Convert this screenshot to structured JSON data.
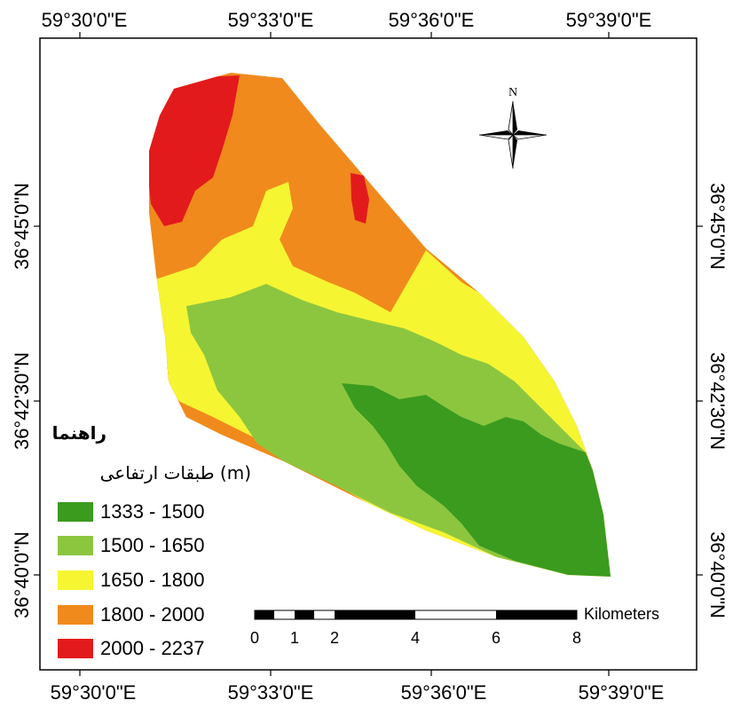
{
  "map": {
    "colors": {
      "class1": "#3a9b1f",
      "class2": "#8cc63f",
      "class3": "#f5f532",
      "class4": "#f08a1c",
      "class5": "#e31a1c"
    },
    "graticule": {
      "top_labels": [
        "59°30'0\"E",
        "59°33'0\"E",
        "59°36'0\"E",
        "59°39'0\"E"
      ],
      "bottom_labels": [
        "59°30'0\"E",
        "59°33'0\"E",
        "59°36'0\"E",
        "59°39'0\"E"
      ],
      "left_labels": [
        "36°45'0\"N",
        "36°42'30\"N",
        "36°40'0\"N"
      ],
      "right_labels": [
        "36°45'0\"N",
        "36°42'30\"N",
        "36°40'0\"N"
      ]
    },
    "north_arrow": {
      "label": "N",
      "icon": "north-arrow-icon"
    },
    "legend": {
      "title": "راهنما",
      "subtitle": "طبقات ارتفاعی (m)",
      "items": [
        {
          "label": "1333 - 1500",
          "color": "#3a9b1f"
        },
        {
          "label": "1500 - 1650",
          "color": "#8cc63f"
        },
        {
          "label": "1650 - 1800",
          "color": "#f5f532"
        },
        {
          "label": "1800 - 2000",
          "color": "#f08a1c"
        },
        {
          "label": "2000 - 2237",
          "color": "#e31a1c"
        }
      ]
    },
    "scale_bar": {
      "unit": "Kilometers",
      "ticks": [
        "0",
        "1",
        "2",
        "4",
        "6",
        "8"
      ]
    }
  }
}
